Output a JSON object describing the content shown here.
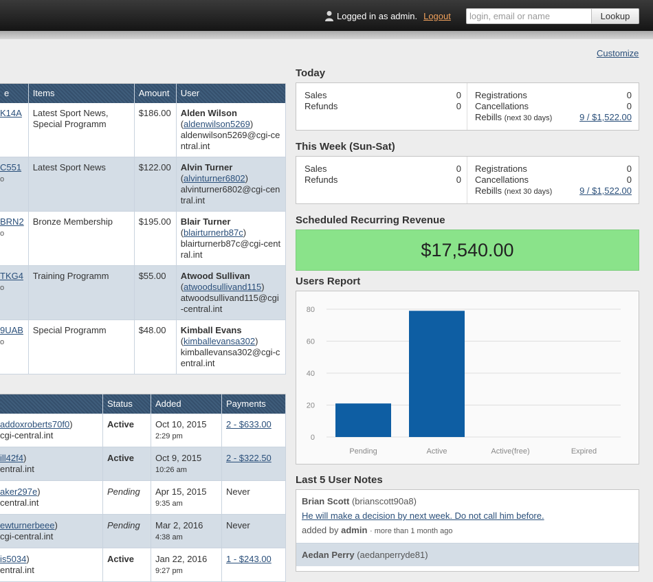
{
  "header": {
    "logged_in_text": "Logged in as admin.",
    "logout_label": "Logout",
    "lookup_placeholder": "login, email or name",
    "lookup_button": "Lookup"
  },
  "customize_label": "Customize",
  "payments": {
    "columns": [
      "e",
      "Items",
      "Amount",
      "User"
    ],
    "rows": [
      {
        "invoice": "K14A",
        "invoice_sub": "",
        "items": "Latest Sport News, Special Programm",
        "amount": "$186.00",
        "user_name": "Alden Wilson",
        "login": "aldenwilson5269",
        "email": "aldenwilson5269@cgi-central.int"
      },
      {
        "invoice": "C551",
        "invoice_sub": "o",
        "items": "Latest Sport News",
        "amount": "$122.00",
        "user_name": "Alvin Turner",
        "login": "alvinturner6802",
        "email": "alvinturner6802@cgi-central.int"
      },
      {
        "invoice": "BRN2",
        "invoice_sub": "o",
        "items": "Bronze Membership",
        "amount": "$195.00",
        "user_name": "Blair Turner",
        "login": "blairturnerb87c",
        "email": "blairturnerb87c@cgi-central.int"
      },
      {
        "invoice": "TKG4",
        "invoice_sub": "o",
        "items": "Training Programm",
        "amount": "$55.00",
        "user_name": "Atwood Sullivan",
        "login": "atwoodsullivand115",
        "email": "atwoodsullivand115@cgi-central.int"
      },
      {
        "invoice": "9UAB",
        "invoice_sub": "o",
        "items": "Special Programm",
        "amount": "$48.00",
        "user_name": "Kimball Evans",
        "login": "kimballevansa302",
        "email": "kimballevansa302@cgi-central.int"
      }
    ]
  },
  "users": {
    "columns": [
      "",
      "Status",
      "Added",
      "Payments"
    ],
    "rows": [
      {
        "login": "addoxroberts70f0",
        "email": "cgi-central.int",
        "status": "Active",
        "added_date": "Oct 10, 2015",
        "added_time": "2:29 pm",
        "payments": "2 - $633.00",
        "payments_link": true
      },
      {
        "login": "ill42f4",
        "email": "entral.int",
        "status": "Active",
        "added_date": "Oct 9, 2015",
        "added_time": "10:26 am",
        "payments": "2 - $322.50",
        "payments_link": true
      },
      {
        "login": "aker297e",
        "email": "central.int",
        "status": "Pending",
        "added_date": "Apr 15, 2015",
        "added_time": "9:35 am",
        "payments": "Never",
        "payments_link": false
      },
      {
        "login": "ewturnerbeee",
        "email": "cgi-central.int",
        "status": "Pending",
        "added_date": "Mar 2, 2016",
        "added_time": "4:38 am",
        "payments": "Never",
        "payments_link": false
      },
      {
        "login": "is5034",
        "email": "entral.int",
        "status": "Active",
        "added_date": "Jan 22, 2016",
        "added_time": "9:27 pm",
        "payments": "1 - $243.00",
        "payments_link": true
      }
    ]
  },
  "today": {
    "title": "Today",
    "sales_label": "Sales",
    "sales": "0",
    "refunds_label": "Refunds",
    "refunds": "0",
    "registrations_label": "Registrations",
    "registrations": "0",
    "cancellations_label": "Cancellations",
    "cancellations": "0",
    "rebills_label": "Rebills",
    "rebills_note": "(next 30 days)",
    "rebills": "9 / $1,522.00"
  },
  "week": {
    "title": "This Week (Sun-Sat)",
    "sales_label": "Sales",
    "sales": "0",
    "refunds_label": "Refunds",
    "refunds": "0",
    "registrations_label": "Registrations",
    "registrations": "0",
    "cancellations_label": "Cancellations",
    "cancellations": "0",
    "rebills_label": "Rebills",
    "rebills_note": "(next 30 days)",
    "rebills": "9 / $1,522.00"
  },
  "revenue": {
    "title": "Scheduled Recurring Revenue",
    "value": "$17,540.00",
    "color": "#8ae38a"
  },
  "users_report": {
    "title": "Users Report"
  },
  "chart_data": {
    "type": "bar",
    "title": "",
    "categories": [
      "Pending",
      "Active",
      "Active(free)",
      "Expired"
    ],
    "values": [
      21,
      79,
      0,
      0
    ],
    "ylim": [
      0,
      80
    ],
    "yticks": [
      0,
      20,
      40,
      60,
      80
    ],
    "grid": true,
    "color": "#0e5ea3"
  },
  "notes": {
    "title": "Last 5 User Notes",
    "items": [
      {
        "name": "Brian Scott",
        "login": "(brianscott90a8)",
        "text": "He will make a decision by next week. Do not call him before.",
        "added_by_label": "added by",
        "author": "admin",
        "ago": "· more than 1 month ago"
      },
      {
        "name": "Aedan Perry",
        "login": "(aedanperryde81)",
        "text": "",
        "added_by_label": "",
        "author": "",
        "ago": ""
      }
    ]
  }
}
